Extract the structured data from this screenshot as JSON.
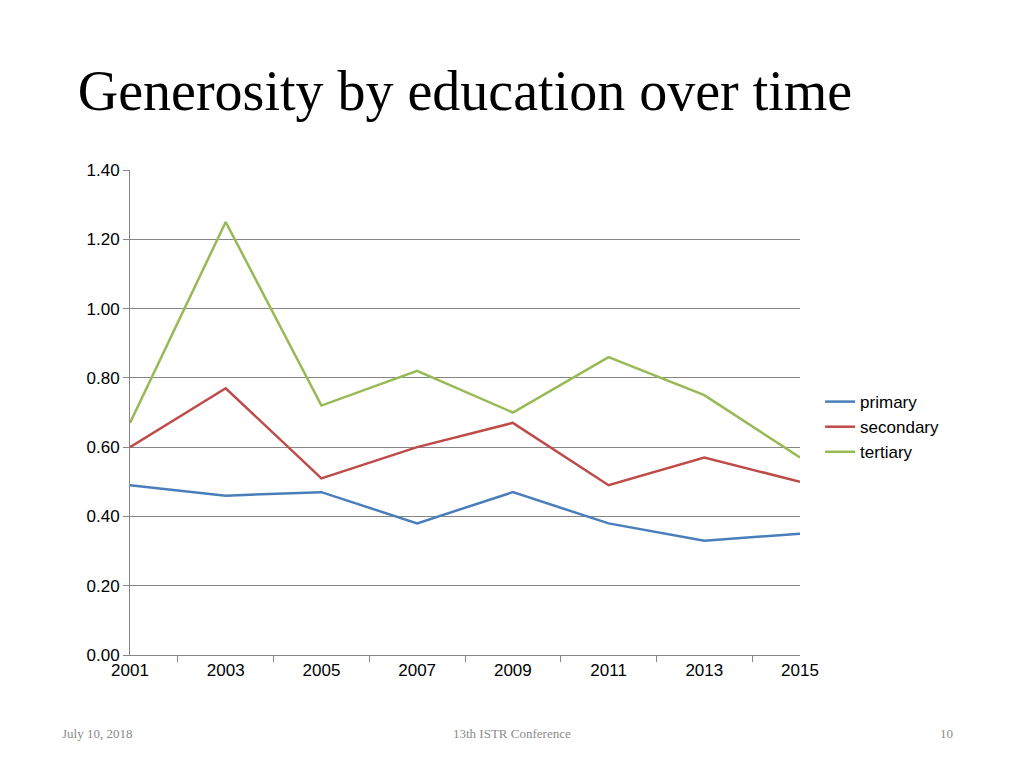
{
  "chart_data": {
    "type": "line",
    "title": "Generosity by education over time",
    "categories": [
      "2001",
      "2003",
      "2005",
      "2007",
      "2009",
      "2011",
      "2013",
      "2015"
    ],
    "series": [
      {
        "name": "primary",
        "color": "#4a7ebb",
        "values": [
          0.49,
          0.46,
          0.47,
          0.38,
          0.47,
          0.38,
          0.33,
          0.35
        ]
      },
      {
        "name": "secondary",
        "color": "#be4b48",
        "values": [
          0.6,
          0.77,
          0.51,
          0.6,
          0.67,
          0.49,
          0.57,
          0.5
        ]
      },
      {
        "name": "tertiary",
        "color": "#98b954",
        "values": [
          0.67,
          1.25,
          0.72,
          0.82,
          0.7,
          0.86,
          0.75,
          0.57
        ]
      }
    ],
    "ylim": [
      0,
      1.4
    ],
    "yticks": [
      {
        "value": 0,
        "label": "0.00"
      },
      {
        "value": 0.2,
        "label": "0.20"
      },
      {
        "value": 0.4,
        "label": "0.40"
      },
      {
        "value": 0.6,
        "label": "0.60"
      },
      {
        "value": 0.8,
        "label": "0.80"
      },
      {
        "value": 1.0,
        "label": "1.00"
      },
      {
        "value": 1.2,
        "label": "1.20"
      },
      {
        "value": 1.4,
        "label": "1.40"
      }
    ],
    "grid": true,
    "legend": "right",
    "annotations": [
      "July 10, 2018",
      "13th ISTR Conference",
      "10"
    ]
  }
}
